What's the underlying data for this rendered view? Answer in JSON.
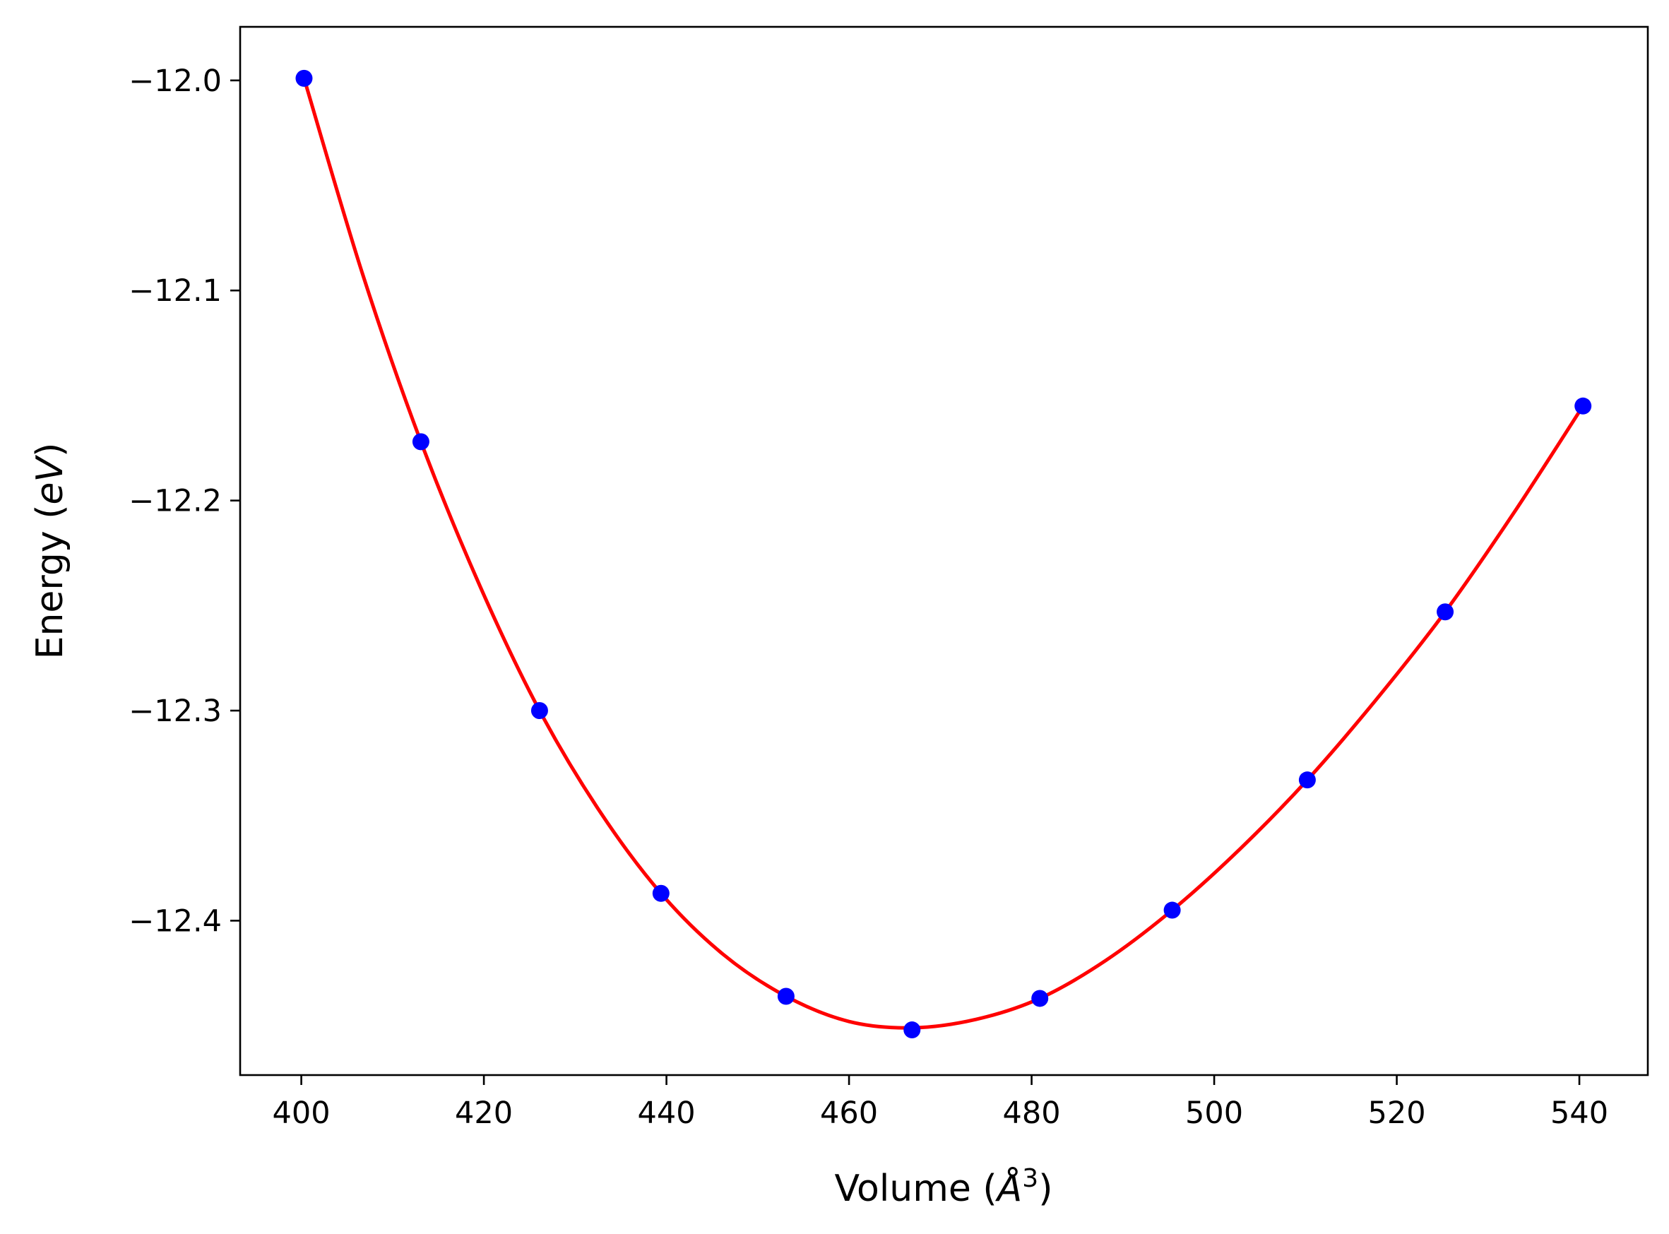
{
  "chart_data": {
    "type": "line",
    "title": "",
    "xlabel": {
      "text": "Volume (",
      "symbol": "Å",
      "exponent": "3",
      "close": ")"
    },
    "ylabel": {
      "text": "Energy (",
      "unit": "eV",
      "close": ")"
    },
    "xlim": [
      393.3,
      547.5
    ],
    "ylim": [
      -12.4735,
      -11.9745
    ],
    "x_ticks": [
      400,
      420,
      440,
      460,
      480,
      500,
      520,
      540
    ],
    "x_tick_labels": [
      "400",
      "420",
      "440",
      "460",
      "480",
      "500",
      "520",
      "540"
    ],
    "y_ticks": [
      -12.0,
      -12.1,
      -12.2,
      -12.3,
      -12.4
    ],
    "y_tick_labels": [
      "−12.0",
      "−12.1",
      "−12.2",
      "−12.3",
      "−12.4"
    ],
    "grid": false,
    "legend": "none",
    "series": [
      {
        "kind": "points",
        "color": "#0000ff",
        "x": [
          400.3,
          413.1,
          426.1,
          439.4,
          453.1,
          466.9,
          480.9,
          495.4,
          510.2,
          525.3,
          540.4
        ],
        "y": [
          -11.999,
          -12.172,
          -12.3,
          -12.387,
          -12.436,
          -12.452,
          -12.437,
          -12.395,
          -12.333,
          -12.253,
          -12.155
        ]
      },
      {
        "kind": "fit-curve",
        "color": "#ff0000",
        "x": [
          400.3,
          406.7,
          413.1,
          419.6,
          426.1,
          432.7,
          439.4,
          446.2,
          453.1,
          460.0,
          466.9,
          473.9,
          480.9,
          488.1,
          495.4,
          502.8,
          510.2,
          517.7,
          525.3,
          532.8,
          540.4
        ],
        "y": [
          -11.999,
          -12.092,
          -12.172,
          -12.241,
          -12.3,
          -12.348,
          -12.387,
          -12.416,
          -12.436,
          -12.448,
          -12.451,
          -12.447,
          -12.437,
          -12.419,
          -12.395,
          -12.366,
          -12.333,
          -12.295,
          -12.253,
          -12.206,
          -12.155
        ]
      }
    ]
  }
}
